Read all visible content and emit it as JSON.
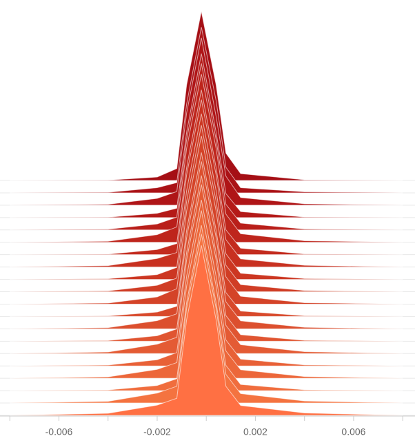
{
  "chart_data": {
    "type": "ridgeline",
    "x": [
      -0.008,
      -0.004,
      -0.002,
      -0.0012,
      -0.0008,
      -0.0002,
      0.0004,
      0.0008,
      0.0014,
      0.004,
      0.008
    ],
    "xlim": [
      -0.0084,
      0.0085
    ],
    "xticks": [
      -0.006,
      -0.002,
      0.002,
      0.006
    ],
    "minor_xticks": [
      -0.008,
      -0.004,
      0,
      0.004,
      0.008
    ],
    "ylim": [
      0,
      1000
    ],
    "series": [
      {
        "color": "#a50f15",
        "values": [
          0,
          2,
          20,
          70,
          560,
          990,
          560,
          160,
          40,
          4,
          0
        ]
      },
      {
        "color": "#aa1216",
        "values": [
          0,
          3,
          30,
          60,
          520,
          970,
          540,
          150,
          30,
          6,
          0
        ]
      },
      {
        "color": "#af1517",
        "values": [
          0,
          5,
          40,
          80,
          540,
          980,
          520,
          170,
          45,
          8,
          0
        ]
      },
      {
        "color": "#b41a18",
        "values": [
          0,
          2,
          25,
          55,
          500,
          960,
          500,
          140,
          35,
          3,
          0
        ]
      },
      {
        "color": "#b91f1a",
        "values": [
          0,
          4,
          35,
          75,
          530,
          975,
          530,
          150,
          40,
          5,
          0
        ]
      },
      {
        "color": "#be251c",
        "values": [
          0,
          6,
          45,
          90,
          550,
          985,
          550,
          165,
          50,
          9,
          0
        ]
      },
      {
        "color": "#c32b1e",
        "values": [
          0,
          3,
          30,
          65,
          510,
          965,
          510,
          145,
          38,
          4,
          0
        ]
      },
      {
        "color": "#c83120",
        "values": [
          0,
          8,
          50,
          85,
          540,
          980,
          540,
          160,
          48,
          10,
          0
        ]
      },
      {
        "color": "#cc3722",
        "values": [
          0,
          4,
          28,
          70,
          520,
          970,
          520,
          150,
          36,
          5,
          0
        ]
      },
      {
        "color": "#d03d25",
        "values": [
          0,
          5,
          38,
          80,
          530,
          975,
          530,
          155,
          42,
          7,
          0
        ]
      },
      {
        "color": "#d44328",
        "values": [
          0,
          6,
          42,
          90,
          545,
          985,
          545,
          160,
          46,
          8,
          0
        ]
      },
      {
        "color": "#d8492b",
        "values": [
          0,
          3,
          26,
          60,
          505,
          960,
          505,
          140,
          32,
          4,
          0
        ]
      },
      {
        "color": "#dc4f2e",
        "values": [
          0,
          7,
          48,
          88,
          535,
          980,
          535,
          158,
          47,
          9,
          0
        ]
      },
      {
        "color": "#e05531",
        "values": [
          0,
          4,
          32,
          72,
          520,
          970,
          520,
          150,
          38,
          5,
          0
        ]
      },
      {
        "color": "#e45b34",
        "values": [
          0,
          9,
          55,
          95,
          550,
          990,
          550,
          165,
          52,
          11,
          0
        ]
      },
      {
        "color": "#e86137",
        "values": [
          0,
          5,
          36,
          78,
          525,
          972,
          525,
          152,
          40,
          6,
          0
        ]
      },
      {
        "color": "#ec673a",
        "values": [
          0,
          8,
          52,
          92,
          540,
          982,
          540,
          160,
          50,
          10,
          0
        ]
      },
      {
        "color": "#f06d3d",
        "values": [
          0,
          4,
          30,
          70,
          515,
          968,
          515,
          148,
          36,
          5,
          0
        ]
      },
      {
        "color": "#f47340",
        "values": [
          0,
          10,
          58,
          98,
          555,
          990,
          555,
          168,
          55,
          12,
          0
        ]
      },
      {
        "color": "#ff7043",
        "values": [
          0,
          12,
          60,
          100,
          560,
          995,
          560,
          170,
          58,
          14,
          0
        ]
      }
    ]
  }
}
